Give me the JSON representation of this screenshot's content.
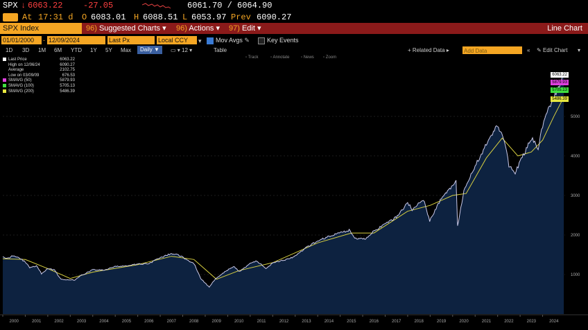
{
  "quote": {
    "ticker": "SPX",
    "arrow": "↓",
    "last": "6063.22",
    "change": "-27.05",
    "bid_ask": "6061.70 / 6064.90",
    "time_prefix": "At",
    "time": "17:31 d",
    "open_label": "O",
    "open": "6083.01",
    "high_label": "H",
    "high": "6088.51",
    "low_label": "L",
    "low": "6053.97",
    "prev_label": "Prev",
    "prev": "6090.27"
  },
  "menubar": {
    "security": "SPX Index",
    "items": [
      {
        "num": "96)",
        "label": "Suggested Charts ▾"
      },
      {
        "num": "96)",
        "label": "Actions ▾"
      },
      {
        "num": "97)",
        "label": "Edit ▾"
      }
    ],
    "right_title": "Line Chart"
  },
  "controls": {
    "start_date": "01/01/2000",
    "end_date": "12/09/2024",
    "price_field": "Last Px",
    "currency": "Local CCY",
    "mov_avgs_label": "Mov Avgs",
    "key_events_label": "Key Events"
  },
  "periods": {
    "items": [
      "1D",
      "3D",
      "1M",
      "6M",
      "YTD",
      "1Y",
      "5Y",
      "Max"
    ],
    "frequency": "Daily ▼",
    "table_label": "Table",
    "related_data": "+ Related Data ▸",
    "add_data_placeholder": "Add Data",
    "edit_chart": "Edit Chart",
    "tools": [
      "Track",
      "Annotate",
      "News",
      "Zoom"
    ]
  },
  "legend": [
    {
      "label": "Last Price",
      "value": "6063.22",
      "color": "#ffffff"
    },
    {
      "label": "High on 12/06/24",
      "value": "6090.27",
      "color": ""
    },
    {
      "label": "Average",
      "value": "2102.75",
      "color": ""
    },
    {
      "label": "Low on 03/09/09",
      "value": "676.53",
      "color": ""
    },
    {
      "label": "SMAVG (50)",
      "value": "5879.93",
      "color": "#e040e0"
    },
    {
      "label": "SMAVG (100)",
      "value": "5705.13",
      "color": "#40e040"
    },
    {
      "label": "SMAVG (200)",
      "value": "5486.39",
      "color": "#e8e840"
    }
  ],
  "price_labels": [
    {
      "value": "6063.22",
      "bg": "#ffffff"
    },
    {
      "value": "5879.93",
      "bg": "#e040e0"
    },
    {
      "value": "5705.13",
      "bg": "#40e040"
    },
    {
      "value": "5486.39",
      "bg": "#e8e840"
    }
  ],
  "colors": {
    "amber": "#f5a623",
    "menubar": "#8b1a1a",
    "area_fill": "#0d2240",
    "price_line": "#c8c8e8",
    "sma200": "#d8d040"
  },
  "chart_data": {
    "type": "area",
    "x_ticks": [
      "2000",
      "2001",
      "2002",
      "2003",
      "2004",
      "2005",
      "2006",
      "2007",
      "2008",
      "2009",
      "2010",
      "2011",
      "2012",
      "2013",
      "2014",
      "2015",
      "2016",
      "2017",
      "2018",
      "2019",
      "2020",
      "2021",
      "2022",
      "2023",
      "2024"
    ],
    "y_ticks": [
      1000,
      2000,
      3000,
      4000,
      5000
    ],
    "ylim": [
      0,
      6400
    ],
    "xlim": [
      2000.0,
      2025.0
    ],
    "series": [
      {
        "name": "Last Price",
        "x": [
          2000.0,
          2000.2,
          2000.45,
          2000.7,
          2001.0,
          2001.2,
          2001.5,
          2001.72,
          2002.0,
          2002.3,
          2002.55,
          2002.78,
          2003.2,
          2003.5,
          2004.0,
          2004.5,
          2005.0,
          2005.5,
          2006.0,
          2006.5,
          2007.0,
          2007.45,
          2007.8,
          2008.2,
          2008.5,
          2008.8,
          2009.18,
          2009.5,
          2010.0,
          2010.3,
          2010.5,
          2011.0,
          2011.3,
          2011.7,
          2012.0,
          2012.5,
          2013.0,
          2013.5,
          2014.0,
          2014.5,
          2015.0,
          2015.4,
          2015.65,
          2016.1,
          2016.5,
          2017.0,
          2017.5,
          2018.0,
          2018.2,
          2018.7,
          2018.98,
          2019.5,
          2020.0,
          2020.15,
          2020.22,
          2020.5,
          2021.0,
          2021.5,
          2021.99,
          2022.3,
          2022.5,
          2022.78,
          2023.0,
          2023.5,
          2023.8,
          2024.0,
          2024.3,
          2024.5,
          2024.75,
          2024.94
        ],
        "y": [
          1469,
          1400,
          1480,
          1430,
          1320,
          1170,
          1220,
          1020,
          1150,
          1120,
          900,
          860,
          860,
          980,
          1120,
          1110,
          1200,
          1220,
          1260,
          1280,
          1420,
          1520,
          1500,
          1370,
          1280,
          900,
          680,
          920,
          1115,
          1200,
          1070,
          1280,
          1340,
          1150,
          1300,
          1360,
          1460,
          1680,
          1850,
          1960,
          2060,
          2120,
          1920,
          1900,
          2100,
          2270,
          2450,
          2820,
          2640,
          2900,
          2350,
          2940,
          3230,
          3380,
          2240,
          3100,
          3750,
          4300,
          4766,
          4400,
          3750,
          3580,
          3850,
          4450,
          4200,
          4770,
          5250,
          5460,
          5760,
          6063
        ]
      },
      {
        "name": "SMAVG (200)",
        "x": [
          2000.0,
          2001.0,
          2002.0,
          2003.0,
          2004.0,
          2006.0,
          2007.5,
          2008.5,
          2009.5,
          2010.5,
          2012.0,
          2014.0,
          2015.5,
          2016.5,
          2018.0,
          2019.0,
          2020.0,
          2020.6,
          2021.5,
          2022.2,
          2022.9,
          2023.5,
          2024.0,
          2024.5,
          2024.94
        ],
        "y": [
          1400,
          1380,
          1150,
          900,
          1060,
          1250,
          1460,
          1380,
          880,
          1100,
          1300,
          1800,
          2050,
          2050,
          2600,
          2750,
          3000,
          3050,
          3950,
          4450,
          4000,
          4100,
          4400,
          5000,
          5486
        ]
      }
    ]
  }
}
